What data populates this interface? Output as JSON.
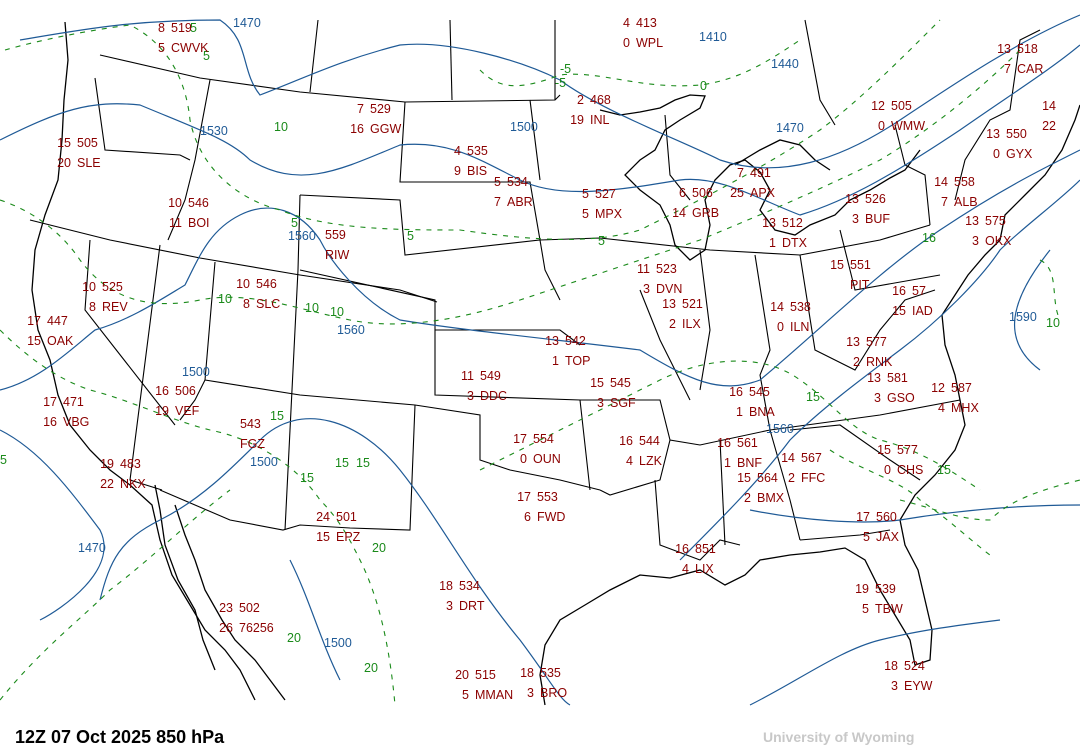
{
  "footer": {
    "title": "12Z 07 Oct 2025  850 hPa",
    "credit": "University of Wyoming"
  },
  "colors": {
    "station_text": "#8b0000",
    "height_contour": "#1f5a96",
    "temperature_contour": "#1a8a1a",
    "borders": "#000000"
  },
  "stations": [
    {
      "id": "CWVK",
      "temp": "8",
      "height": "519",
      "dewdep": "5"
    },
    {
      "id": "SLE",
      "temp": "15",
      "height": "505",
      "dewdep": "20"
    },
    {
      "id": "BOI",
      "temp": "10",
      "height": "546",
      "dewdep": "11"
    },
    {
      "id": "RIW",
      "temp": "",
      "height": "559",
      "dewdep": ""
    },
    {
      "id": "GGW",
      "temp": "7",
      "height": "529",
      "dewdep": "16"
    },
    {
      "id": "BIS",
      "temp": "4",
      "height": "535",
      "dewdep": "9"
    },
    {
      "id": "ABR",
      "temp": "5",
      "height": "534",
      "dewdep": "7"
    },
    {
      "id": "INL",
      "temp": "2",
      "height": "468",
      "dewdep": "19"
    },
    {
      "id": "WPL",
      "temp": "4",
      "height": "413",
      "dewdep": "0"
    },
    {
      "id": "MPX",
      "temp": "5",
      "height": "527",
      "dewdep": "5"
    },
    {
      "id": "GRB",
      "temp": "6",
      "height": "506",
      "dewdep": "14"
    },
    {
      "id": "APX",
      "temp": "7",
      "height": "491",
      "dewdep": "25"
    },
    {
      "id": "DTX",
      "temp": "13",
      "height": "512",
      "dewdep": "1"
    },
    {
      "id": "WMW",
      "temp": "12",
      "height": "505",
      "dewdep": "0"
    },
    {
      "id": "CAR",
      "temp": "13",
      "height": "518",
      "dewdep": "7"
    },
    {
      "id": "GYX",
      "temp": "13",
      "height": "550",
      "dewdep": "0"
    },
    {
      "id": "ALB",
      "temp": "14",
      "height": "558",
      "dewdep": "7"
    },
    {
      "id": "BUF",
      "temp": "13",
      "height": "526",
      "dewdep": "3"
    },
    {
      "id": "OKX",
      "temp": "13",
      "height": "575",
      "dewdep": "3"
    },
    {
      "id": "REV",
      "temp": "10",
      "height": "525",
      "dewdep": "8"
    },
    {
      "id": "OAK",
      "temp": "17",
      "height": "447",
      "dewdep": "15"
    },
    {
      "id": "SLC",
      "temp": "10",
      "height": "546",
      "dewdep": "8"
    },
    {
      "id": "VEF",
      "temp": "16",
      "height": "506",
      "dewdep": "19"
    },
    {
      "id": "VBG",
      "temp": "17",
      "height": "471",
      "dewdep": "16"
    },
    {
      "id": "FGZ",
      "temp": "",
      "height": "543",
      "dewdep": ""
    },
    {
      "id": "NKX",
      "temp": "19",
      "height": "483",
      "dewdep": "22"
    },
    {
      "id": "DDC",
      "temp": "11",
      "height": "549",
      "dewdep": "3"
    },
    {
      "id": "TOP",
      "temp": "13",
      "height": "542",
      "dewdep": "1"
    },
    {
      "id": "SGF",
      "temp": "15",
      "height": "545",
      "dewdep": "3"
    },
    {
      "id": "DVN",
      "temp": "11",
      "height": "523",
      "dewdep": "3"
    },
    {
      "id": "ILX",
      "temp": "13",
      "height": "521",
      "dewdep": "2"
    },
    {
      "id": "OUN",
      "temp": "17",
      "height": "554",
      "dewdep": "0"
    },
    {
      "id": "LZK",
      "temp": "16",
      "height": "544",
      "dewdep": "4"
    },
    {
      "id": "FWD",
      "temp": "17",
      "height": "553",
      "dewdep": "6"
    },
    {
      "id": "ILN",
      "temp": "14",
      "height": "538",
      "dewdep": "0"
    },
    {
      "id": "PIT",
      "temp": "15",
      "height": "551",
      "dewdep": ""
    },
    {
      "id": "IAD",
      "temp": "16",
      "height": "57",
      "dewdep": "15"
    },
    {
      "id": "RNK",
      "temp": "13",
      "height": "577",
      "dewdep": "2"
    },
    {
      "id": "GSO",
      "temp": "13",
      "height": "581",
      "dewdep": "3"
    },
    {
      "id": "MHX",
      "temp": "12",
      "height": "587",
      "dewdep": "4"
    },
    {
      "id": "BNA",
      "temp": "16",
      "height": "545",
      "dewdep": "1"
    },
    {
      "id": "BNF",
      "temp": "16",
      "height": "561",
      "dewdep": "1"
    },
    {
      "id": "BMX",
      "temp": "15",
      "height": "564",
      "dewdep": "2"
    },
    {
      "id": "FFC",
      "temp": "14",
      "height": "567",
      "dewdep": "2"
    },
    {
      "id": "CHS",
      "temp": "15",
      "height": "577",
      "dewdep": "0"
    },
    {
      "id": "JAX",
      "temp": "17",
      "height": "560",
      "dewdep": "5"
    },
    {
      "id": "TBW",
      "temp": "19",
      "height": "539",
      "dewdep": "5"
    },
    {
      "id": "EYW",
      "temp": "18",
      "height": "524",
      "dewdep": "3"
    },
    {
      "id": "LIX",
      "temp": "16",
      "height": "851",
      "dewdep": "4"
    },
    {
      "id": "DRT",
      "temp": "18",
      "height": "534",
      "dewdep": "3"
    },
    {
      "id": "MMAN",
      "temp": "20",
      "height": "515",
      "dewdep": "5"
    },
    {
      "id": "BRO",
      "temp": "18",
      "height": "535",
      "dewdep": "3"
    },
    {
      "id": "EPZ",
      "temp": "24",
      "height": "501",
      "dewdep": "15"
    },
    {
      "id": "76256",
      "temp": "23",
      "height": "502",
      "dewdep": "26"
    },
    {
      "id": "",
      "temp": "14",
      "height": "",
      "dewdep": "22"
    }
  ],
  "height_labels": [
    "1470",
    "1410",
    "1440",
    "1470",
    "1500",
    "1530",
    "1560",
    "1560",
    "1500",
    "1500",
    "1560",
    "1590",
    "1470",
    "1500"
  ],
  "temp_labels": [
    "5",
    "5",
    "10",
    "5",
    "5",
    "5",
    "-5",
    "-5",
    "0",
    "10",
    "10",
    "10",
    "15",
    "15",
    "20",
    "15",
    "16",
    "15",
    "10",
    "15",
    "20",
    "20",
    "5",
    "15"
  ]
}
